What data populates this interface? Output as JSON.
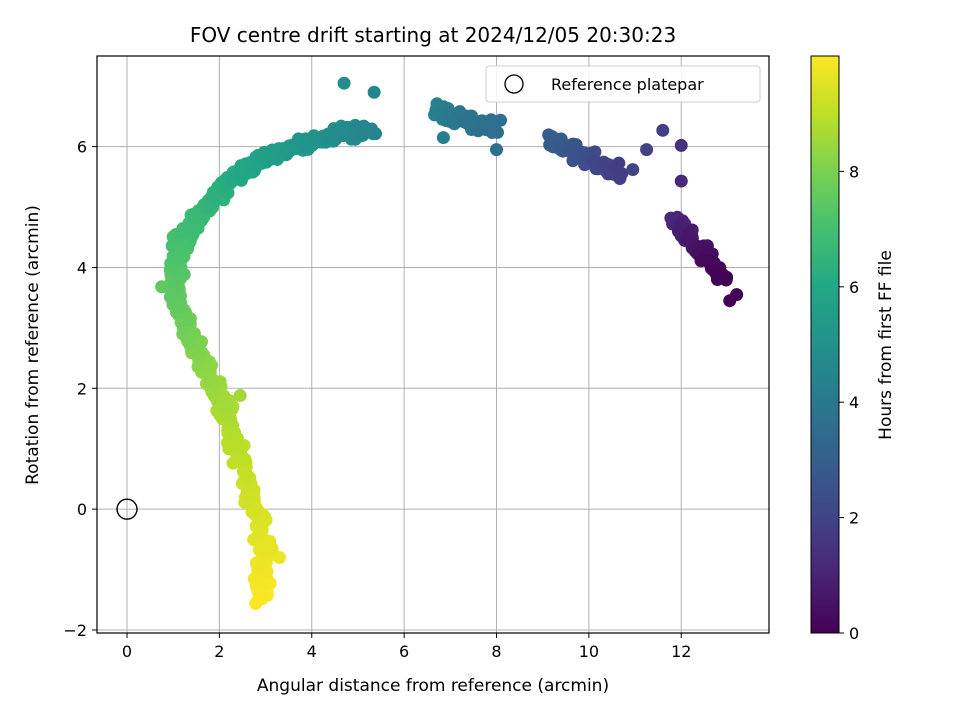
{
  "chart_data": {
    "type": "scatter",
    "title": "FOV centre drift starting at 2024/12/05 20:30:23",
    "xlabel": "Angular distance from reference (arcmin)",
    "ylabel": "Rotation from reference (arcmin)",
    "xlim": [
      -0.65,
      13.9
    ],
    "ylim": [
      -2.05,
      7.5
    ],
    "x_ticks": [
      "0",
      "2",
      "4",
      "6",
      "8",
      "10",
      "12"
    ],
    "y_ticks": [
      "−2",
      "0",
      "2",
      "4",
      "6"
    ],
    "grid": true,
    "colormap": "viridis",
    "colorbar": {
      "label": "Hours from first FF file",
      "range": [
        0,
        10
      ],
      "ticks": [
        "0",
        "2",
        "4",
        "6",
        "8"
      ]
    },
    "legend": {
      "position": "top-right",
      "entries": [
        "Reference platepar"
      ]
    },
    "reference_point": {
      "x": 0,
      "y": 0
    },
    "drift_path": [
      {
        "x": 12.9,
        "y": 3.8,
        "t": 0.0
      },
      {
        "x": 12.2,
        "y": 4.5,
        "t": 0.7
      },
      {
        "x": 11.8,
        "y": 4.8,
        "t": 1.2
      },
      {
        "x": 10.6,
        "y": 5.6,
        "t": 1.8
      },
      {
        "x": 10.0,
        "y": 5.8,
        "t": 2.4
      },
      {
        "x": 9.2,
        "y": 6.1,
        "t": 3.0
      },
      {
        "x": 8.0,
        "y": 6.3,
        "t": 3.6
      },
      {
        "x": 7.0,
        "y": 6.5,
        "t": 4.1
      },
      {
        "x": 6.7,
        "y": 6.6,
        "t": 4.3
      },
      {
        "x": 5.3,
        "y": 6.3,
        "t": 4.5
      },
      {
        "x": 4.5,
        "y": 6.2,
        "t": 4.9
      },
      {
        "x": 3.7,
        "y": 6.0,
        "t": 5.3
      },
      {
        "x": 3.0,
        "y": 5.8,
        "t": 5.7
      },
      {
        "x": 2.3,
        "y": 5.5,
        "t": 6.1
      },
      {
        "x": 1.7,
        "y": 5.0,
        "t": 6.6
      },
      {
        "x": 1.2,
        "y": 4.5,
        "t": 7.0
      },
      {
        "x": 1.05,
        "y": 4.0,
        "t": 7.3
      },
      {
        "x": 1.1,
        "y": 3.4,
        "t": 7.6
      },
      {
        "x": 1.4,
        "y": 2.8,
        "t": 8.0
      },
      {
        "x": 1.8,
        "y": 2.2,
        "t": 8.4
      },
      {
        "x": 2.2,
        "y": 1.5,
        "t": 8.8
      },
      {
        "x": 2.5,
        "y": 0.7,
        "t": 9.1
      },
      {
        "x": 2.8,
        "y": 0.0,
        "t": 9.4
      },
      {
        "x": 3.0,
        "y": -0.7,
        "t": 9.7
      },
      {
        "x": 2.9,
        "y": -1.5,
        "t": 10.0
      }
    ],
    "outliers": [
      {
        "x": 4.7,
        "y": 7.05,
        "t": 4.8
      },
      {
        "x": 5.35,
        "y": 6.9,
        "t": 4.6
      },
      {
        "x": 11.6,
        "y": 6.27,
        "t": 1.9
      },
      {
        "x": 12.0,
        "y": 6.02,
        "t": 1.4
      },
      {
        "x": 12.0,
        "y": 5.43,
        "t": 1.2
      },
      {
        "x": 0.75,
        "y": 3.68,
        "t": 7.5
      },
      {
        "x": 2.45,
        "y": 1.88,
        "t": 8.6
      },
      {
        "x": 3.3,
        "y": -0.8,
        "t": 9.7
      },
      {
        "x": 13.2,
        "y": 3.55,
        "t": 0.1
      },
      {
        "x": 13.05,
        "y": 3.45,
        "t": 0.1
      },
      {
        "x": 10.95,
        "y": 5.62,
        "t": 2.0
      },
      {
        "x": 11.25,
        "y": 5.95,
        "t": 1.9
      },
      {
        "x": 8.0,
        "y": 5.95,
        "t": 3.6
      },
      {
        "x": 6.85,
        "y": 6.15,
        "t": 4.2
      }
    ]
  }
}
